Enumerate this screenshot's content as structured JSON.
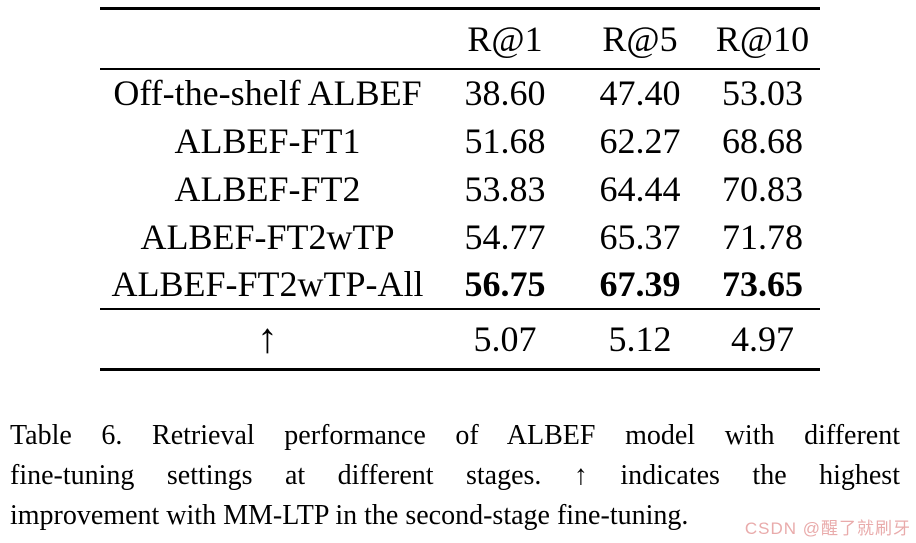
{
  "table": {
    "header": {
      "col0": "",
      "col1": "R@1",
      "col2": "R@5",
      "col3": "R@10"
    },
    "rows": [
      {
        "label": "Off-the-shelf ALBEF",
        "r1": "38.60",
        "r5": "47.40",
        "r10": "53.03"
      },
      {
        "label": "ALBEF-FT1",
        "r1": "51.68",
        "r5": "62.27",
        "r10": "68.68"
      },
      {
        "label": "ALBEF-FT2",
        "r1": "53.83",
        "r5": "64.44",
        "r10": "70.83"
      },
      {
        "label": "ALBEF-FT2wTP",
        "r1": "54.77",
        "r5": "65.37",
        "r10": "71.78"
      },
      {
        "label": "ALBEF-FT2wTP-All",
        "r1": "56.75",
        "r5": "67.39",
        "r10": "73.65"
      }
    ],
    "improvement_row": {
      "label": "↑",
      "r1": "5.07",
      "r5": "5.12",
      "r10": "4.97"
    }
  },
  "caption": {
    "lines": [
      "Table 6. Retrieval performance of ALBEF model with different",
      "fine-tuning settings at different stages. ↑ indicates the highest",
      "improvement with MM-LTP in the second-stage fine-tuning."
    ]
  },
  "watermark": {
    "text": "CSDN @醒了就刷牙",
    "color": "#e9abab"
  },
  "colors": {
    "text": "#000000",
    "background": "#ffffff",
    "rule": "#000000"
  }
}
